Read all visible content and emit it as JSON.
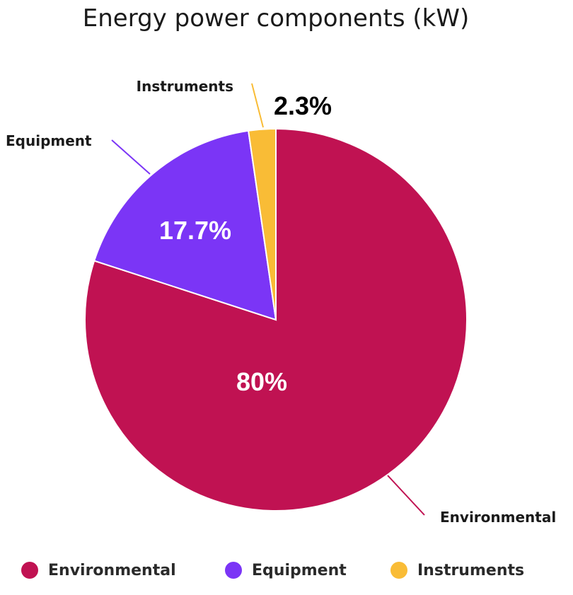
{
  "chart_data": {
    "type": "pie",
    "title": "Energy power components (kW)",
    "slices": [
      {
        "label": "Environmental",
        "value": 80,
        "percent_label": "80%",
        "color": "#C01252"
      },
      {
        "label": "Equipment",
        "value": 17.7,
        "percent_label": "17.7%",
        "color": "#7B35F6"
      },
      {
        "label": "Instruments",
        "value": 2.3,
        "percent_label": "2.3%",
        "color": "#F9BC36"
      }
    ],
    "legend": {
      "position": "bottom"
    },
    "percent_label_colors": {
      "inside": "#ffffff",
      "outside": "#000000"
    }
  }
}
